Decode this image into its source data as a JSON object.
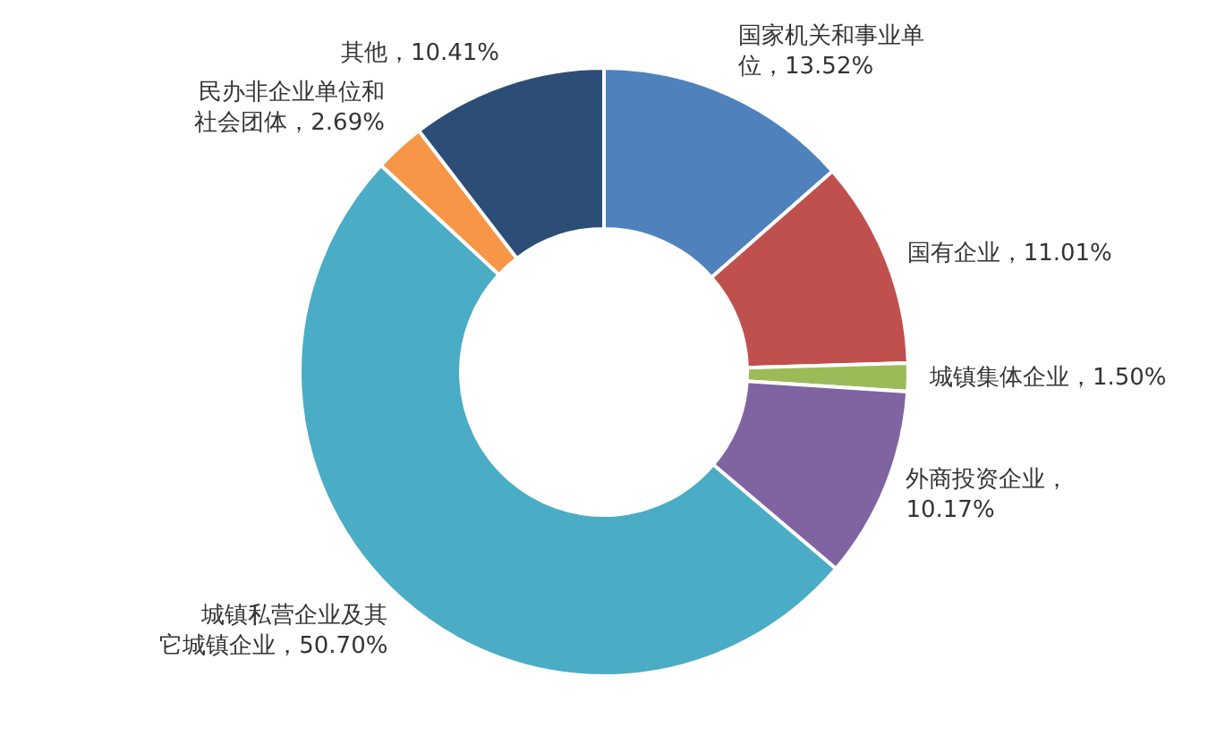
{
  "chart_data": {
    "type": "donut",
    "categories": [
      "国家机关和事业单位",
      "国有企业",
      "城镇集体企业",
      "外商投资企业",
      "城镇私营企业及其它城镇企业",
      "民办非企业单位和社会团体",
      "其他"
    ],
    "values": [
      13.52,
      11.01,
      1.5,
      10.17,
      50.7,
      2.69,
      10.41
    ],
    "value_labels": [
      "，13.52%",
      "，11.01%",
      "，1.50%",
      "，10.17%",
      "，50.70%",
      "，2.69%",
      "，10.41%"
    ],
    "colors": [
      "#4f81bd",
      "#c0504d",
      "#9bbb59",
      "#8064a2",
      "#4bacc6",
      "#f79646",
      "#2c4d75"
    ]
  }
}
